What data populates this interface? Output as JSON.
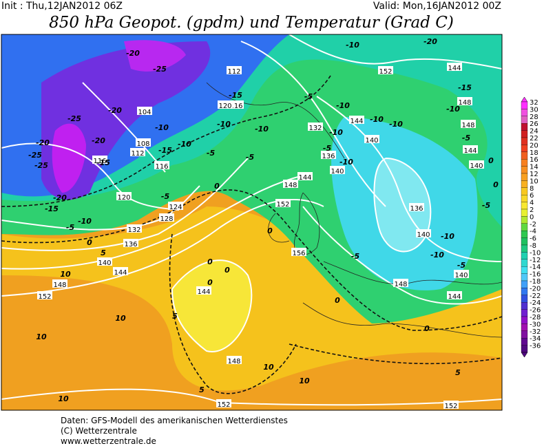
{
  "header": {
    "init": "Init : Thu,12JAN2012 06Z",
    "valid": "Valid: Mon,16JAN2012 00Z",
    "title": "850 hPa Geopot. (gpdm) und Temperatur (Grad C)"
  },
  "map": {
    "labels": [
      "152",
      "144",
      "148",
      "148",
      "144",
      "140",
      "112",
      "116",
      "120",
      "104",
      "108",
      "112",
      "116",
      "116",
      "120",
      "124",
      "128",
      "132",
      "136",
      "140",
      "144",
      "148",
      "152",
      "132",
      "136",
      "140",
      "144",
      "148",
      "152",
      "156",
      "144",
      "148",
      "152",
      "152",
      "136",
      "140",
      "140",
      "148",
      "144",
      "140",
      "144",
      "-20",
      "-25",
      "-20",
      "-25",
      "-20",
      "-25",
      "-25",
      "-20",
      "-15",
      "-20",
      "-15",
      "-10",
      "-5",
      "0",
      "-15",
      "-10",
      "-5",
      "-10",
      "-5",
      "0",
      "-10",
      "-5",
      "-15",
      "-10",
      "-5",
      "-10",
      "-10",
      "-5",
      "-10",
      "-10",
      "-10",
      "-10",
      "-20",
      "-15",
      "-10",
      "-5",
      "0",
      "0",
      "-5",
      "-10",
      "-10",
      "-5",
      "-5",
      "0",
      "0",
      "5",
      "5",
      "5",
      "10",
      "10",
      "10",
      "5",
      "10",
      "10",
      "10",
      "0",
      "0",
      "0",
      "0"
    ]
  },
  "colorbar": {
    "labels": [
      32,
      30,
      28,
      26,
      24,
      22,
      20,
      18,
      16,
      14,
      12,
      10,
      8,
      6,
      4,
      2,
      0,
      -2,
      -4,
      -6,
      -8,
      -10,
      -12,
      -14,
      -16,
      -18,
      -20,
      -22,
      -24,
      -26,
      -28,
      -30,
      -32,
      -34,
      -36
    ]
  },
  "footer": {
    "lines": [
      "Daten: GFS-Modell des amerikanischen Wetterdienstes",
      "(C) Wetterzentrale",
      "www.wetterzentrale.de"
    ]
  }
}
